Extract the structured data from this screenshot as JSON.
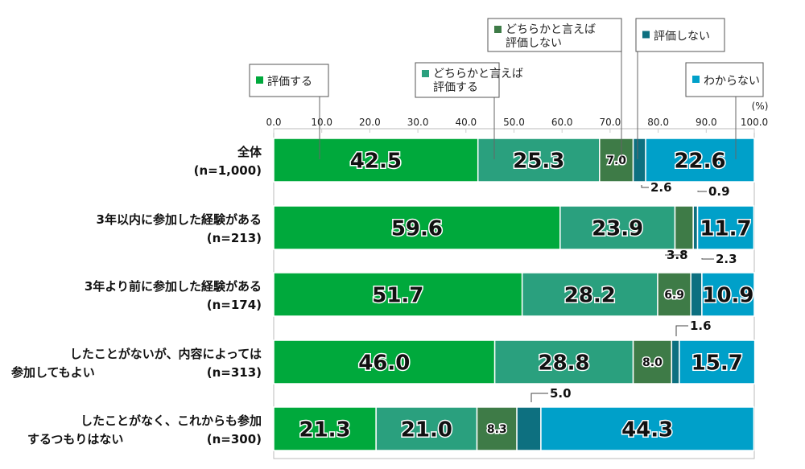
{
  "chart_data": {
    "type": "bar",
    "orientation": "horizontal-stacked-100",
    "unit": "(%)",
    "xlim": [
      0,
      100
    ],
    "ticks": [
      "0.0",
      "10.0",
      "20.0",
      "30.0",
      "40.0",
      "50.0",
      "60.0",
      "70.0",
      "80.0",
      "90.0",
      "100.0"
    ],
    "categories": [
      {
        "label": [
          "全体"
        ],
        "n": "(n=1,000)"
      },
      {
        "label": [
          "3年以内に参加した経験がある"
        ],
        "n": "(n=213)"
      },
      {
        "label": [
          "3年より前に参加した経験がある"
        ],
        "n": "(n=174)"
      },
      {
        "label": [
          "したことがないが、内容によっては",
          "参加してもよい"
        ],
        "n": "(n=313)"
      },
      {
        "label": [
          "したことがなく、これからも参加",
          "するつもりはない"
        ],
        "n": "(n=300)"
      }
    ],
    "series": [
      {
        "name": [
          "評価する"
        ],
        "color": "#00a93c",
        "values": [
          42.5,
          59.6,
          51.7,
          46.0,
          21.3
        ]
      },
      {
        "name": [
          "どちらかと言えば",
          "評価する"
        ],
        "color": "#2aa07e",
        "values": [
          25.3,
          23.9,
          28.2,
          28.8,
          21.0
        ]
      },
      {
        "name": [
          "どちらかと言えば",
          "評価しない"
        ],
        "color": "#3e7b47",
        "values": [
          7.0,
          3.8,
          6.9,
          8.0,
          8.3
        ]
      },
      {
        "name": [
          "評価しない"
        ],
        "color": "#0d7080",
        "values": [
          2.6,
          0.9,
          2.3,
          1.6,
          5.0
        ]
      },
      {
        "name": [
          "わからない"
        ],
        "color": "#00a0c9",
        "values": [
          22.6,
          11.7,
          10.9,
          15.7,
          44.3
        ]
      }
    ]
  }
}
